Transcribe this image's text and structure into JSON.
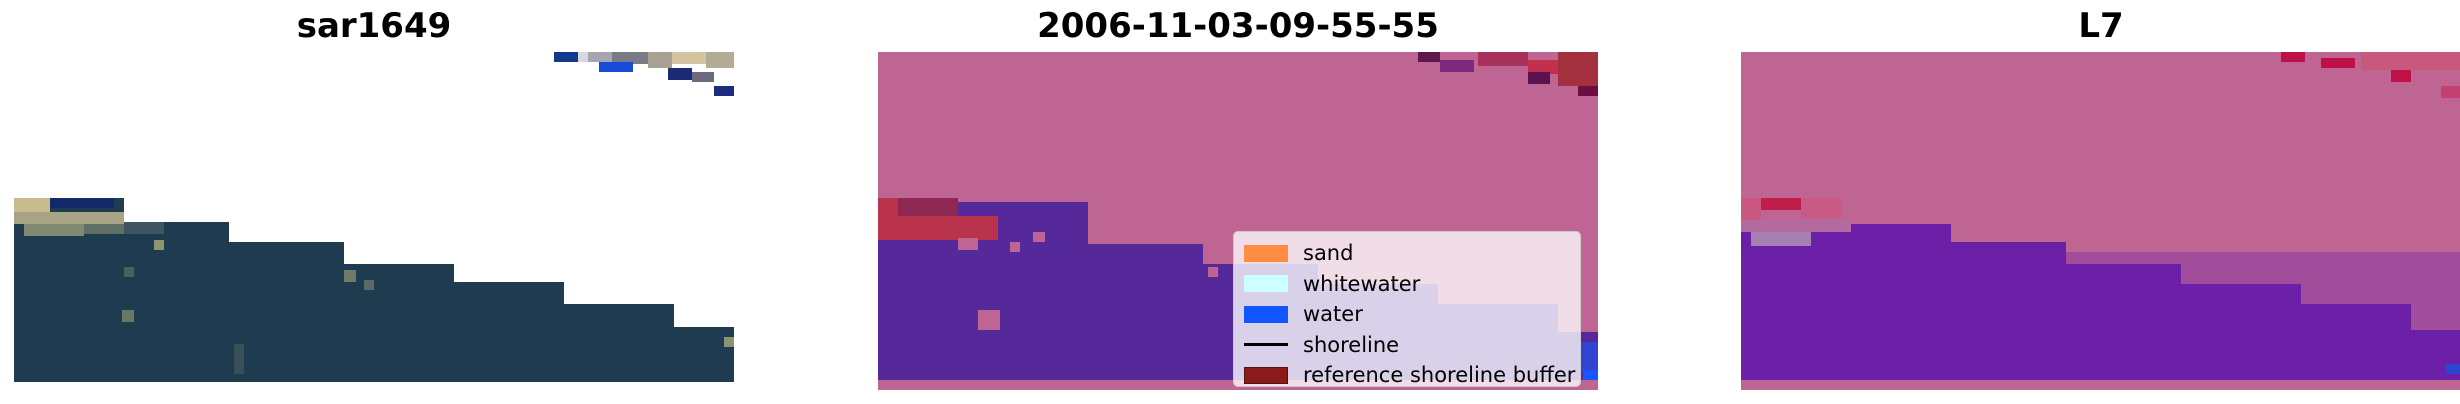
{
  "panels": [
    {
      "title": "sar1649"
    },
    {
      "title": "2006-11-03-09-55-55"
    },
    {
      "title": "L7"
    }
  ],
  "legend": {
    "items": [
      {
        "label": "sand",
        "color": "#ff8c42",
        "type": "patch"
      },
      {
        "label": "whitewater",
        "color": "#ccffff",
        "type": "patch"
      },
      {
        "label": "water",
        "color": "#1155ff",
        "type": "patch"
      },
      {
        "label": "shoreline",
        "color": "#000000",
        "type": "line"
      },
      {
        "label": "reference shoreline buffer",
        "color": "#8b1a1a",
        "type": "patch"
      }
    ]
  },
  "colors": {
    "sar_water": "#1d3a52",
    "sar_sand": "#c9bb8e",
    "classified_land": "#bf6594",
    "classified_water": "#55299a",
    "classified_sand": "#b8334b",
    "l7_land": "#bf6594",
    "l7_water": "#6a1fa6"
  }
}
